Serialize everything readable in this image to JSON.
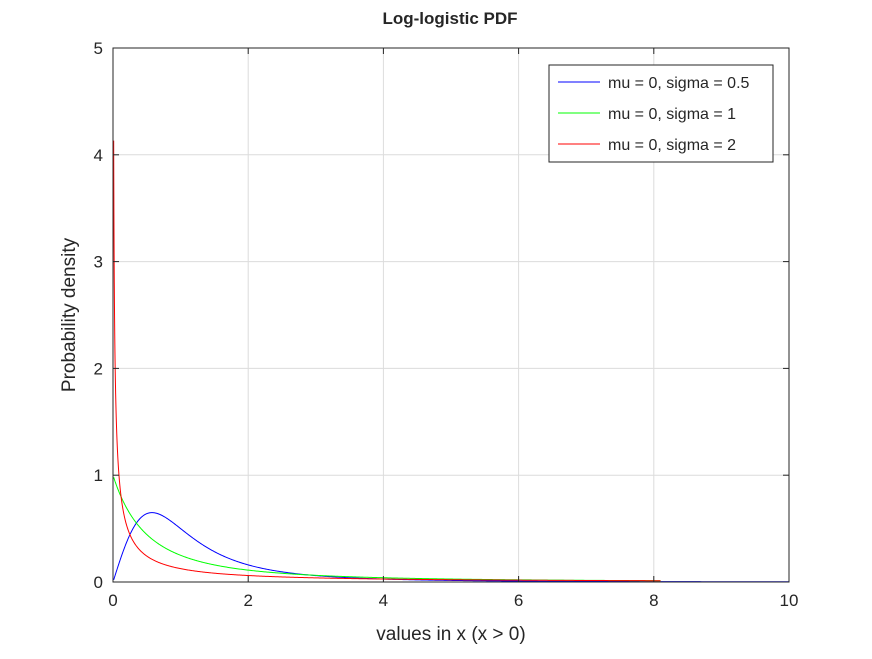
{
  "chart_data": {
    "type": "line",
    "title": "Log-logistic PDF",
    "xlabel": "values in x (x > 0)",
    "ylabel": "Probability density",
    "xlim": [
      0,
      10
    ],
    "ylim": [
      0,
      5
    ],
    "xticks": [
      "0",
      "2",
      "4",
      "6",
      "8",
      "10"
    ],
    "yticks": [
      "0",
      "1",
      "2",
      "3",
      "4",
      "5"
    ],
    "grid": true,
    "legend_position": "top-right",
    "series": [
      {
        "name": "mu = 0, sigma = 0.5",
        "mu": 0,
        "sigma": 0.5,
        "x_range": [
          0.01,
          10
        ],
        "color": "#0000ff"
      },
      {
        "name": "mu = 0, sigma = 1",
        "mu": 0,
        "sigma": 1,
        "x_range": [
          0.01,
          8.1
        ],
        "color": "#00ff00"
      },
      {
        "name": "mu = 0, sigma = 2",
        "mu": 0,
        "sigma": 2,
        "x_range": [
          0.01,
          8.1
        ],
        "color": "#ff0000"
      }
    ]
  }
}
